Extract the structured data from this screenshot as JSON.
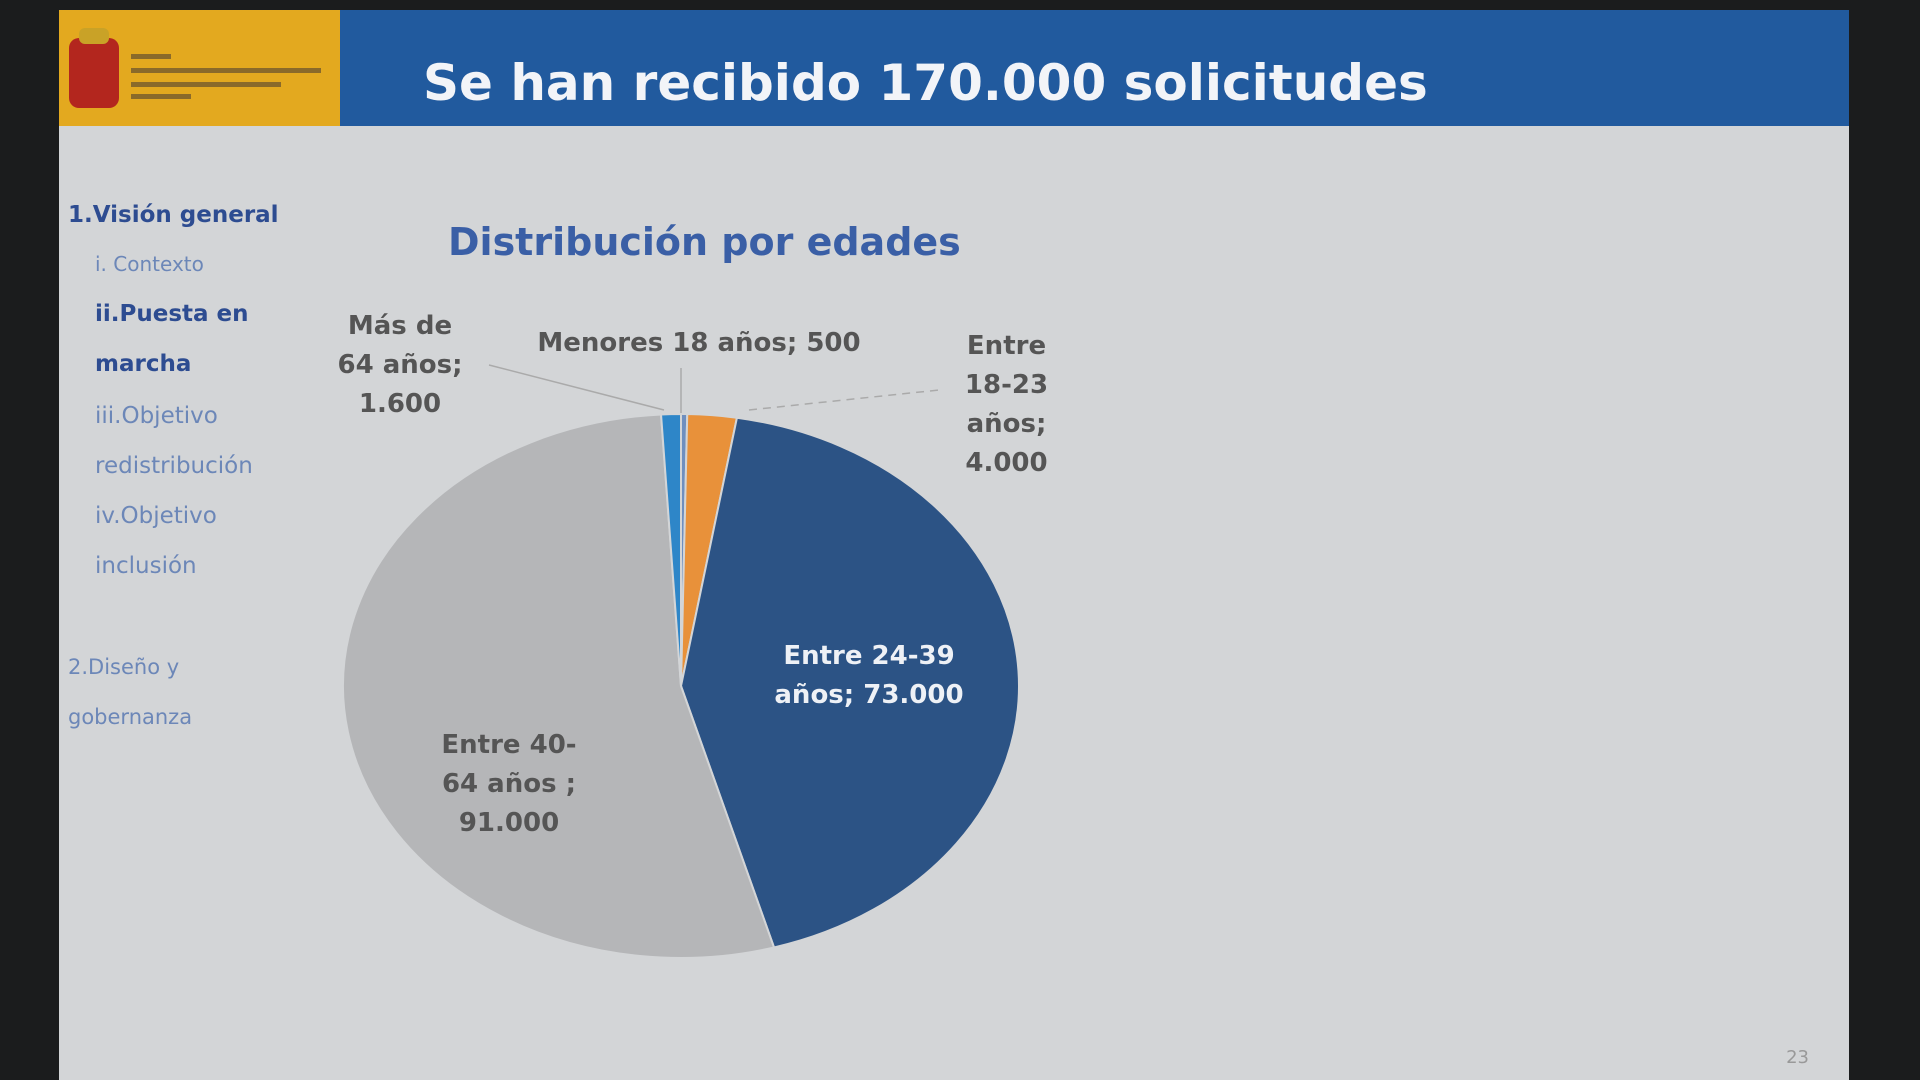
{
  "header": {
    "title": "Se han recibido 170.000 solicitudes"
  },
  "sidebar": {
    "items": [
      "1.Visión general",
      "i. Contexto",
      "ii.Puesta en marcha",
      "iii.Objetivo redistribución",
      "iv.Objetivo inclusión",
      "2.Diseño y gobernanza"
    ]
  },
  "slide": {
    "page_number": "23"
  },
  "chart_data": {
    "type": "pie",
    "title": "Distribución por edades",
    "categories": [
      "Menores 18 años;",
      "Entre 18-23 años;",
      "Entre 24-39 años;",
      "Entre 40-64 años ;",
      "Más de 64 años;"
    ],
    "values": [
      500,
      4000,
      73000,
      91000,
      1600
    ],
    "value_labels": [
      "500",
      "4.000",
      "73.000",
      "91.000",
      "1.600"
    ],
    "colors": [
      "#6f8fbf",
      "#e8913a",
      "#2c5385",
      "#b5b6b8",
      "#2e86c8"
    ]
  }
}
